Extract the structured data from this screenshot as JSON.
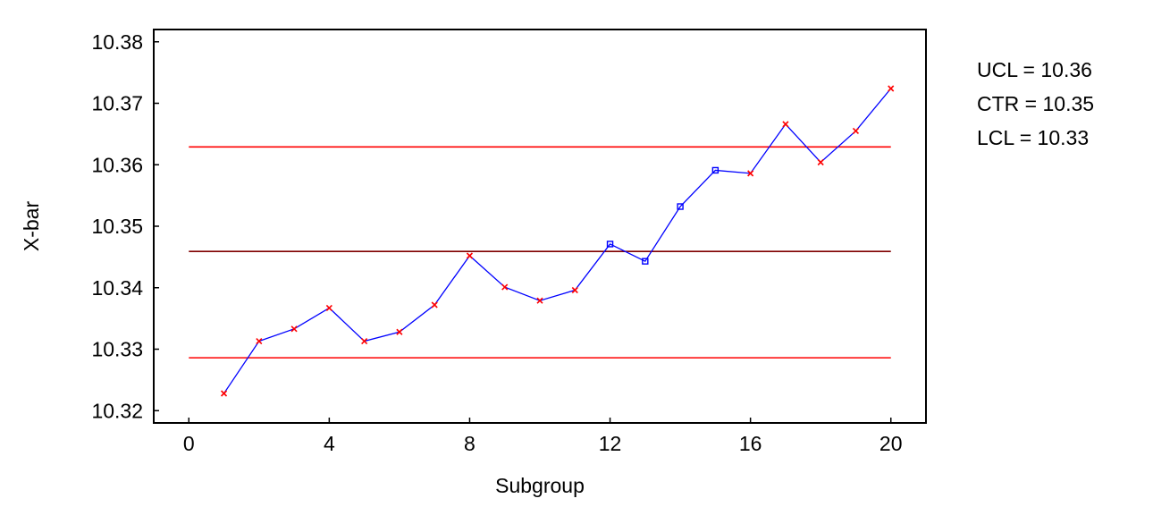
{
  "chart_data": {
    "type": "line",
    "title": "",
    "xlabel": "Subgroup",
    "ylabel": "X-bar",
    "xlim": [
      -1,
      21
    ],
    "ylim": [
      10.318,
      10.382
    ],
    "xticks": [
      0,
      4,
      8,
      12,
      16,
      20
    ],
    "xtick_labels": [
      "0",
      "4",
      "8",
      "12",
      "16",
      "20"
    ],
    "yticks": [
      10.32,
      10.33,
      10.34,
      10.35,
      10.36,
      10.37,
      10.38
    ],
    "ytick_labels": [
      "10.32",
      "10.33",
      "10.34",
      "10.35",
      "10.36",
      "10.37",
      "10.38"
    ],
    "grid": false,
    "series": [
      {
        "x": [
          1,
          2,
          3,
          4,
          5,
          6,
          7,
          8,
          9,
          10,
          11,
          12,
          13,
          14,
          15,
          16,
          17,
          18,
          19,
          20
        ],
        "values": [
          10.3228,
          10.3313,
          10.3333,
          10.3367,
          10.3313,
          10.3328,
          10.3372,
          10.3452,
          10.3401,
          10.3379,
          10.3396,
          10.3471,
          10.3443,
          10.3532,
          10.3591,
          10.3586,
          10.3666,
          10.3604,
          10.3655,
          10.3724
        ],
        "markers": [
          "x",
          "x",
          "x",
          "x",
          "x",
          "x",
          "x",
          "x",
          "x",
          "x",
          "x",
          "square",
          "square",
          "square",
          "square",
          "x",
          "x",
          "x",
          "x",
          "x"
        ],
        "color": "#0000ff",
        "marker_color_x": "#ff0000",
        "marker_color_square": "#0000ff"
      }
    ],
    "limits": [
      {
        "key": "ucl",
        "value": 10.3629,
        "color": "#ff0000"
      },
      {
        "key": "ctr",
        "value": 10.3459,
        "color": "#800000"
      },
      {
        "key": "lcl",
        "value": 10.3286,
        "color": "#ff0000"
      }
    ],
    "limit_labels": [
      "UCL = 10.36",
      "CTR = 10.35",
      "LCL = 10.33"
    ]
  }
}
